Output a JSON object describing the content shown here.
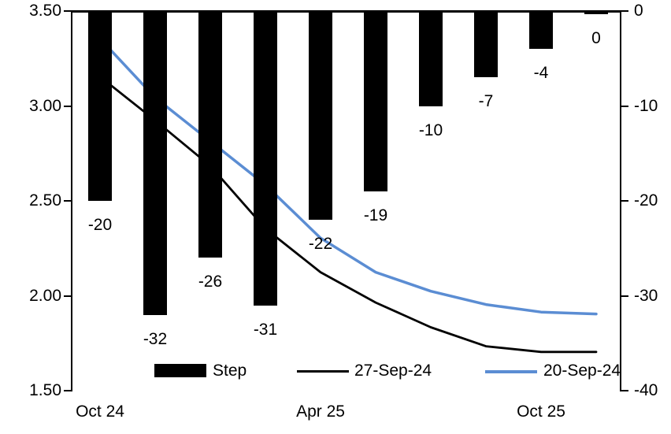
{
  "chart_data": {
    "type": "bar",
    "subtype": "combo-bar-line-dual-axis",
    "title": "",
    "bar_series": {
      "name": "Step",
      "axis": "right",
      "color": "#000000",
      "values": [
        -20,
        -32,
        -26,
        -31,
        -22,
        -19,
        -10,
        -7,
        -4,
        0
      ],
      "labels": [
        "-20",
        "-32",
        "-26",
        "-31",
        "-22",
        "-19",
        "-10",
        "-7",
        "-4",
        "0"
      ]
    },
    "line_series": [
      {
        "name": "27-Sep-24",
        "axis": "left",
        "color": "#000000",
        "stroke_width": 2.8,
        "values": [
          3.15,
          2.92,
          2.68,
          2.35,
          2.12,
          1.96,
          1.83,
          1.73,
          1.7,
          1.7
        ]
      },
      {
        "name": "20-Sep-24",
        "axis": "left",
        "color": "#5B8DD3",
        "stroke_width": 3.5,
        "values": [
          3.35,
          3.04,
          2.81,
          2.58,
          2.3,
          2.12,
          2.02,
          1.95,
          1.91,
          1.9
        ]
      }
    ],
    "left_axis": {
      "ticks": [
        "3.50",
        "3.00",
        "2.50",
        "2.00",
        "1.50"
      ],
      "values": [
        3.5,
        3.0,
        2.5,
        2.0,
        1.5
      ],
      "range": [
        1.5,
        3.5
      ]
    },
    "right_axis": {
      "ticks": [
        "0",
        "-10",
        "-20",
        "-30",
        "-40"
      ],
      "values": [
        0,
        -10,
        -20,
        -30,
        -40
      ],
      "range": [
        -40,
        0
      ]
    },
    "x_ticks": [
      {
        "label": "Oct 24",
        "bar_index": 0
      },
      {
        "label": "Apr 25",
        "bar_index": 4
      },
      {
        "label": "Oct 25",
        "bar_index": 8
      }
    ],
    "legend": [
      {
        "label": "Step",
        "swatch": "bar",
        "color": "#000000"
      },
      {
        "label": "27-Sep-24",
        "swatch": "line",
        "color": "#000000"
      },
      {
        "label": "20-Sep-24",
        "swatch": "line",
        "color": "#5B8DD3"
      }
    ],
    "grid": false,
    "legend_position": "bottom-inside"
  }
}
